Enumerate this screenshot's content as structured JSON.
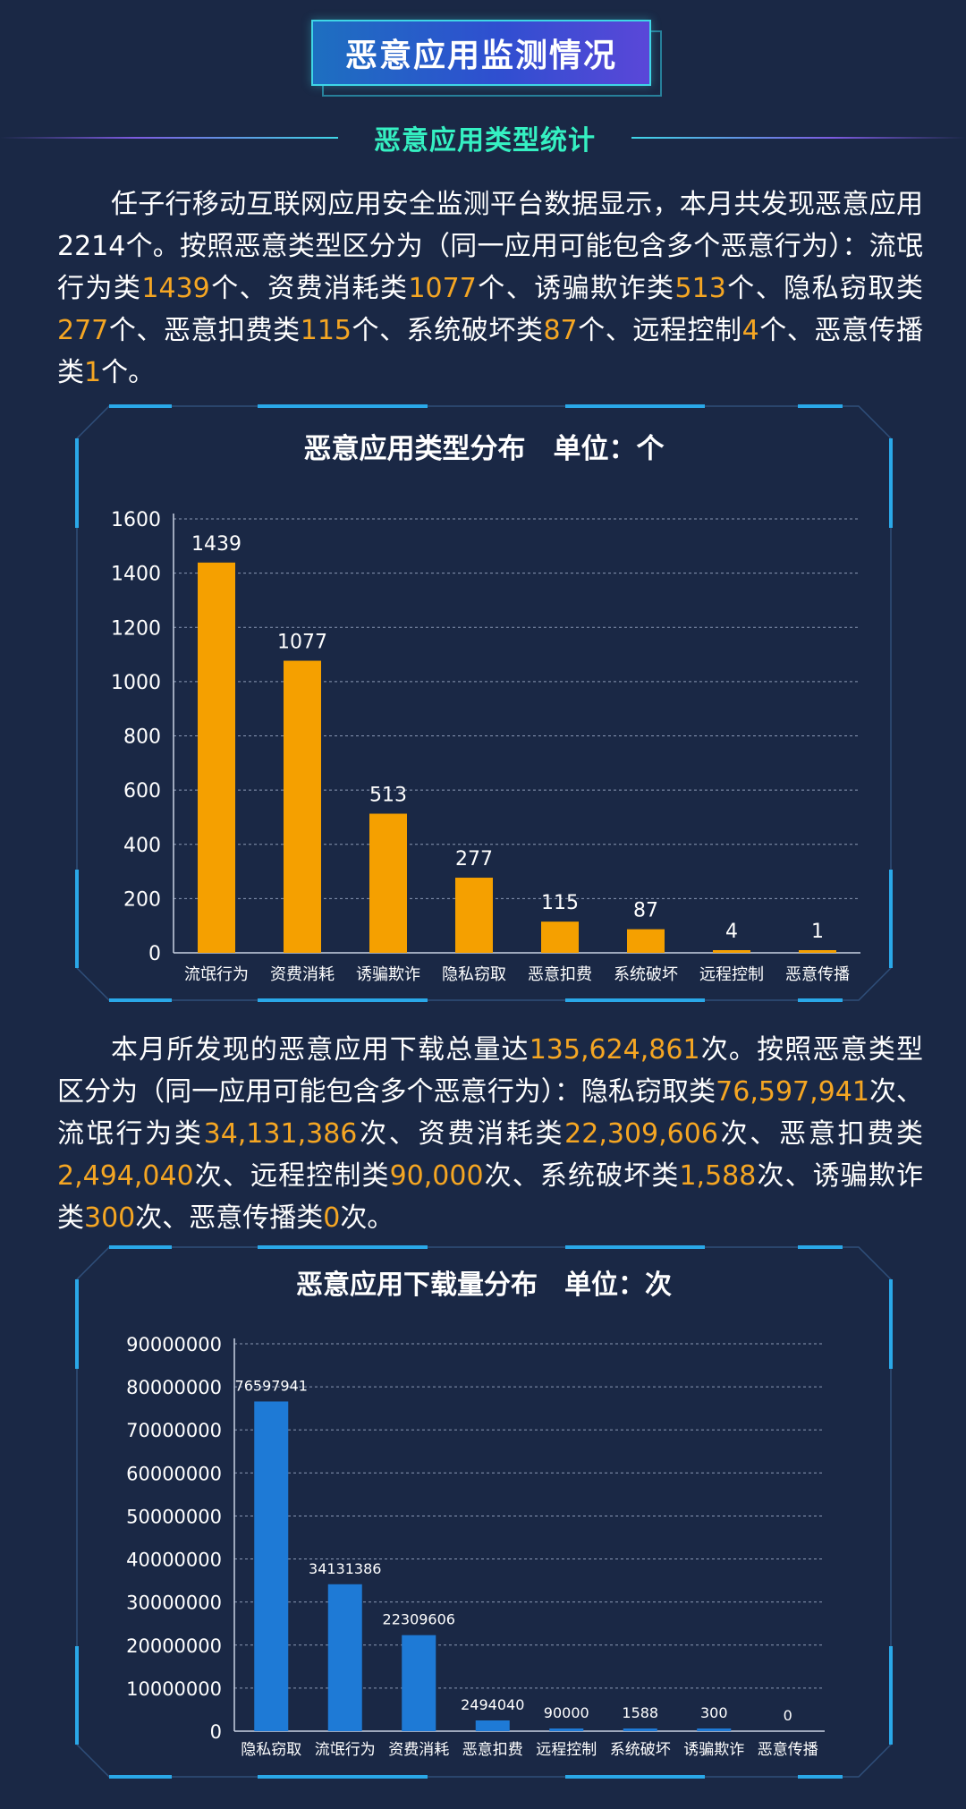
{
  "header": {
    "title": "恶意应用监测情况",
    "subtitle": "恶意应用类型统计"
  },
  "paragraph1": [
    {
      "t": "任子行移动互联网应用安全监测平台数据显示，本月共发现恶意应用2214个。按照恶意类型区分为（同一应用可能包含多个恶意行为）：流氓行为类"
    },
    {
      "t": "1439",
      "hl": true
    },
    {
      "t": "个、资费消耗类"
    },
    {
      "t": "1077",
      "hl": true
    },
    {
      "t": "个、诱骗欺诈类"
    },
    {
      "t": "513",
      "hl": true
    },
    {
      "t": "个、隐私窃取类"
    },
    {
      "t": "277",
      "hl": true
    },
    {
      "t": "个、恶意扣费类"
    },
    {
      "t": "115",
      "hl": true
    },
    {
      "t": "个、系统破坏类"
    },
    {
      "t": "87",
      "hl": true
    },
    {
      "t": "个、远程控制"
    },
    {
      "t": "4",
      "hl": true
    },
    {
      "t": "个、恶意传播类"
    },
    {
      "t": "1",
      "hl": true
    },
    {
      "t": "个。"
    }
  ],
  "paragraph2": [
    {
      "t": "本月所发现的恶意应用下载总量达"
    },
    {
      "t": "135,624,861",
      "hl": true
    },
    {
      "t": "次。按照恶意类型区分为（同一应用可能包含多个恶意行为）：隐私窃取类"
    },
    {
      "t": "76,597,941",
      "hl": true
    },
    {
      "t": "次、流氓行为类"
    },
    {
      "t": "34,131,386",
      "hl": true
    },
    {
      "t": "次、资费消耗类"
    },
    {
      "t": "22,309,606",
      "hl": true
    },
    {
      "t": "次、恶意扣费类"
    },
    {
      "t": "2,494,040",
      "hl": true
    },
    {
      "t": "次、远程控制类"
    },
    {
      "t": "90,000",
      "hl": true
    },
    {
      "t": "次、系统破坏类"
    },
    {
      "t": "1,588",
      "hl": true
    },
    {
      "t": "次、诱骗欺诈类"
    },
    {
      "t": "300",
      "hl": true
    },
    {
      "t": "次、恶意传播类"
    },
    {
      "t": "0",
      "hl": true
    },
    {
      "t": "次。"
    }
  ],
  "colors": {
    "highlight": "#f5a623",
    "bar1": "#f5a000",
    "bar2": "#1e7ad6",
    "frame": "#2aa8e8",
    "grid": "#8a98b4"
  },
  "chart_data": [
    {
      "type": "bar",
      "title": "恶意应用类型分布　单位：个",
      "categories": [
        "流氓行为",
        "资费消耗",
        "诱骗欺诈",
        "隐私窃取",
        "恶意扣费",
        "系统破坏",
        "远程控制",
        "恶意传播"
      ],
      "values": [
        1439,
        1077,
        513,
        277,
        115,
        87,
        4,
        1
      ],
      "ylim": [
        0,
        1600
      ],
      "yticks": [
        0,
        200,
        400,
        600,
        800,
        1000,
        1200,
        1400,
        1600
      ],
      "grid": true,
      "color": "#f5a000"
    },
    {
      "type": "bar",
      "title": "恶意应用下载量分布　单位：次",
      "categories": [
        "隐私窃取",
        "流氓行为",
        "资费消耗",
        "恶意扣费",
        "远程控制",
        "系统破坏",
        "诱骗欺诈",
        "恶意传播"
      ],
      "values": [
        76597941,
        34131386,
        22309606,
        2494040,
        90000,
        1588,
        300,
        0
      ],
      "ylim": [
        0,
        90000000
      ],
      "yticks": [
        0,
        10000000,
        20000000,
        30000000,
        40000000,
        50000000,
        60000000,
        70000000,
        80000000,
        90000000
      ],
      "grid": true,
      "color": "#1e7ad6"
    }
  ]
}
